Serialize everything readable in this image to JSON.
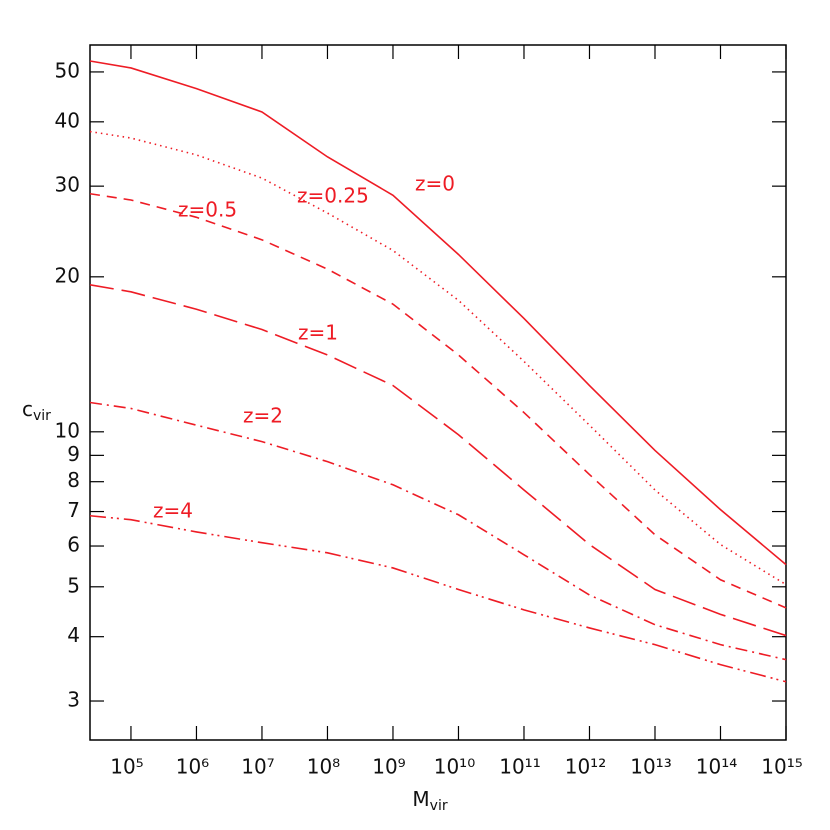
{
  "chart_data": {
    "type": "line",
    "xlabel": "M",
    "xlabel_sub": "vir",
    "ylabel": "c",
    "ylabel_sub": "vir",
    "log_x": true,
    "log_y": true,
    "x": [
      23700,
      100000.0,
      1000000.0,
      10000000.0,
      100000000.0,
      1000000000.0,
      10000000000.0,
      100000000000.0,
      1000000000000.0,
      10000000000000.0,
      100000000000000.0,
      1000000000000000.0
    ],
    "series": [
      {
        "name": "z=0",
        "color": "#ee1c25",
        "style": "solid",
        "values": [
          52.5,
          50.9,
          46.4,
          41.8,
          34.2,
          28.8,
          22.1,
          16.6,
          12.3,
          9.2,
          7.06,
          5.52
        ]
      },
      {
        "name": "z=0.25",
        "color": "#ee1c25",
        "style": "dotted",
        "values": [
          38.3,
          37.2,
          34.5,
          31.1,
          26.6,
          22.5,
          18.0,
          13.7,
          10.3,
          7.71,
          6.04,
          5.05
        ]
      },
      {
        "name": "z=0.5",
        "color": "#ee1c25",
        "style": "dashed",
        "values": [
          29.0,
          28.2,
          26.1,
          23.6,
          20.7,
          17.7,
          14.1,
          10.9,
          8.26,
          6.31,
          5.16,
          4.55
        ]
      },
      {
        "name": "z=1",
        "color": "#ee1c25",
        "style": "longdash",
        "values": [
          19.3,
          18.7,
          17.3,
          15.8,
          14.1,
          12.3,
          9.87,
          7.71,
          6.04,
          4.94,
          4.42,
          4.02
        ]
      },
      {
        "name": "z=2",
        "color": "#ee1c25",
        "style": "dashdot",
        "values": [
          11.4,
          11.1,
          10.3,
          9.57,
          8.75,
          7.89,
          6.9,
          5.77,
          4.82,
          4.22,
          3.86,
          3.61
        ]
      },
      {
        "name": "z=4",
        "color": "#ee1c25",
        "style": "dashdotdot",
        "values": [
          6.87,
          6.75,
          6.39,
          6.09,
          5.82,
          5.44,
          4.94,
          4.51,
          4.16,
          3.86,
          3.53,
          3.27
        ]
      }
    ],
    "xlim": [
      23700,
      1000000000000000.0
    ],
    "ylim": [
      2.52,
      56.4
    ],
    "xticks": [
      {
        "value": 100000.0,
        "label": "10⁵"
      },
      {
        "value": 1000000.0,
        "label": "10⁶"
      },
      {
        "value": 10000000.0,
        "label": "10⁷"
      },
      {
        "value": 100000000.0,
        "label": "10⁸"
      },
      {
        "value": 1000000000.0,
        "label": "10⁹"
      },
      {
        "value": 10000000000.0,
        "label": "10¹⁰"
      },
      {
        "value": 100000000000.0,
        "label": "10¹¹"
      },
      {
        "value": 1000000000000.0,
        "label": "10¹²"
      },
      {
        "value": 10000000000000.0,
        "label": "10¹³"
      },
      {
        "value": 100000000000000.0,
        "label": "10¹⁴"
      },
      {
        "value": 1000000000000000.0,
        "label": "10¹⁵"
      }
    ],
    "yticks": [
      3,
      4,
      5,
      6,
      7,
      8,
      9,
      10,
      20,
      30,
      40,
      50
    ]
  }
}
